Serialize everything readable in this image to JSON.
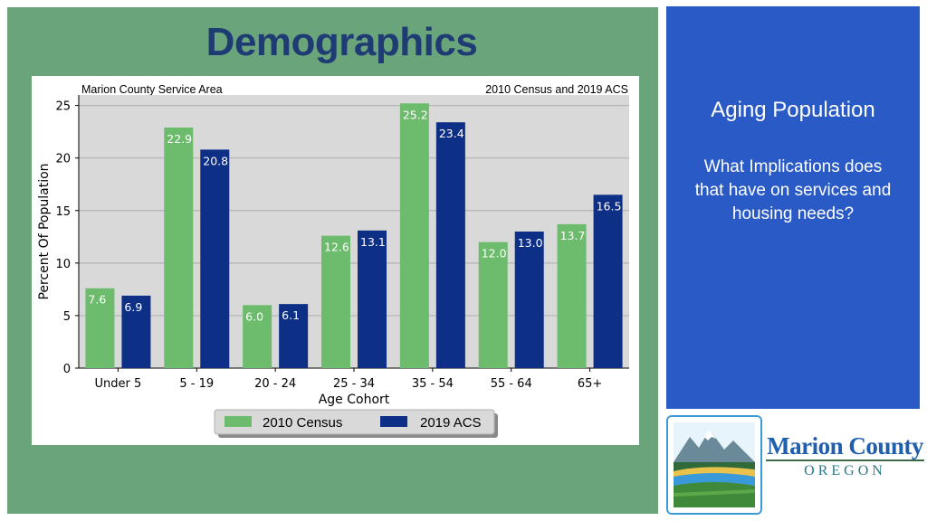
{
  "slide": {
    "title": "Demographics",
    "colors": {
      "panel_green": "#6aa47a",
      "panel_blue": "#2a5ac5",
      "title_color": "#1f3b73"
    }
  },
  "chart_data": {
    "type": "bar",
    "title_left": "Marion County Service Area",
    "title_right": "2010 Census and 2019 ACS",
    "xlabel": "Age Cohort",
    "ylabel": "Percent Of Population",
    "categories": [
      "Under 5",
      "5 - 19",
      "20 - 24",
      "25 - 34",
      "35 - 54",
      "55 - 64",
      "65+"
    ],
    "series": [
      {
        "name": "2010 Census",
        "color": "#6dbb6d",
        "values": [
          7.6,
          22.9,
          6.0,
          12.6,
          25.2,
          12.0,
          13.7
        ]
      },
      {
        "name": "2019 ACS",
        "color": "#0d2f86",
        "values": [
          6.9,
          20.8,
          6.1,
          13.1,
          23.4,
          13.0,
          16.5
        ]
      }
    ],
    "ylim": [
      0,
      26
    ],
    "yticks": [
      0,
      5,
      10,
      15,
      20,
      25
    ],
    "grid": true,
    "legend_position": "bottom-center",
    "data_labels": true
  },
  "side_panel": {
    "heading": "Aging Population",
    "question": "What Implications does that have on services and housing needs?"
  },
  "logo": {
    "name": "Marion County",
    "subtitle": "OREGON"
  }
}
